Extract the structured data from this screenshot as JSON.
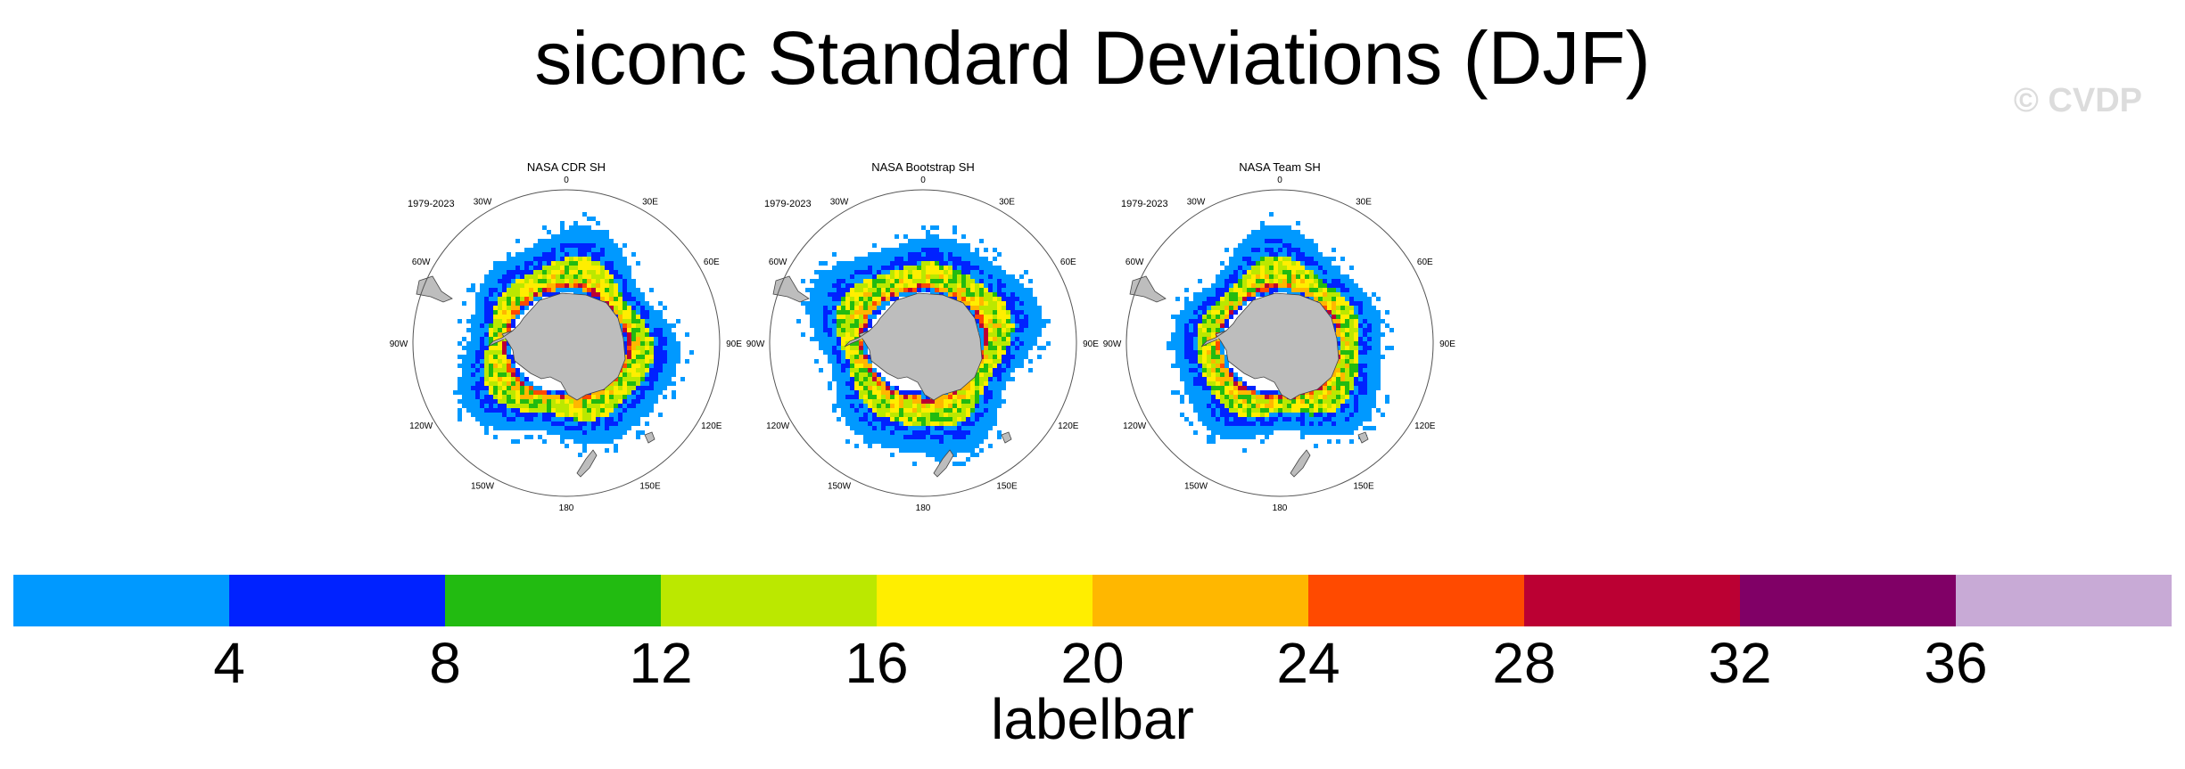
{
  "chart_data": {
    "type": "heatmap",
    "title": "siconc Standard Deviations (DJF)",
    "watermark": "© CVDP",
    "projection": "south-polar-stereographic",
    "panels": [
      {
        "title": "NASA CDR SH",
        "period": "1979-2023"
      },
      {
        "title": "NASA Bootstrap SH",
        "period": "1979-2023"
      },
      {
        "title": "NASA Team SH",
        "period": "1979-2023"
      }
    ],
    "longitude_labels": [
      "0",
      "30E",
      "60E",
      "90E",
      "120E",
      "150E",
      "180",
      "150W",
      "120W",
      "90W",
      "60W",
      "30W"
    ],
    "colorbar": {
      "label": "labelbar",
      "ticks": [
        "4",
        "8",
        "12",
        "16",
        "20",
        "24",
        "28",
        "32",
        "36"
      ],
      "levels": [
        4,
        8,
        12,
        16,
        20,
        24,
        28,
        32,
        36
      ],
      "colors": [
        "#0099ff",
        "#0022ff",
        "#22bb11",
        "#bbe800",
        "#ffee00",
        "#ffb700",
        "#ff4a00",
        "#bb0033",
        "#800066",
        "#c8aad6"
      ]
    }
  }
}
